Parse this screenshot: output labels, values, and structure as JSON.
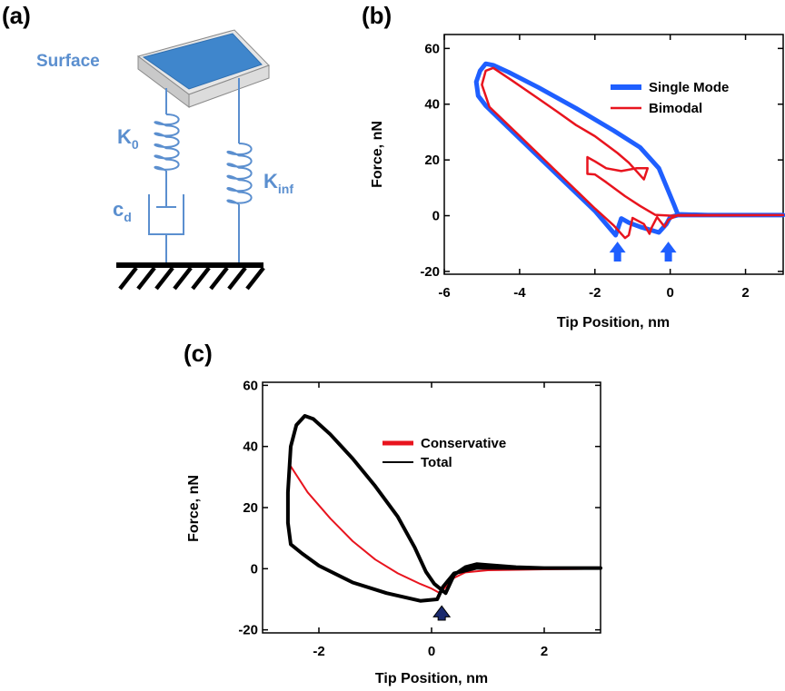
{
  "panels": {
    "a": "(a)",
    "b": "(b)",
    "c": "(c)"
  },
  "schematic": {
    "surface_label": "Surface",
    "k0_main": "K",
    "k0_sub": "0",
    "cd_main": "c",
    "cd_sub": "d",
    "kinf_main": "K",
    "kinf_sub": "inf",
    "colors": {
      "label": "#5b8fcf",
      "surface_top": "#3f86cc",
      "spring": "#5b8fcf"
    }
  },
  "chart_data": [
    {
      "id": "b",
      "type": "line",
      "xlabel": "Tip Position, nm",
      "ylabel": "Force, nN",
      "xlim": [
        -6,
        3
      ],
      "ylim": [
        -21,
        65
      ],
      "xticks": [
        -6,
        -4,
        -2,
        0,
        2
      ],
      "yticks": [
        -20,
        0,
        20,
        40,
        60
      ],
      "legend_position": "top-right",
      "series": [
        {
          "name": "Single Mode",
          "color": "#1f5fff",
          "points": [
            [
              3.0,
              0.2
            ],
            [
              1.0,
              0.2
            ],
            [
              0.2,
              0.2
            ],
            [
              0.0,
              -0.5
            ],
            [
              -0.1,
              -3
            ],
            [
              -0.3,
              -6
            ],
            [
              -0.8,
              -4
            ],
            [
              -1.1,
              -2.5
            ],
            [
              -1.3,
              -1
            ],
            [
              -1.45,
              -7
            ],
            [
              -2.0,
              1.7
            ],
            [
              -2.5,
              8.2
            ],
            [
              -3.0,
              14.7
            ],
            [
              -3.5,
              21.2
            ],
            [
              -4.0,
              27.7
            ],
            [
              -4.5,
              34.2
            ],
            [
              -4.9,
              39.5
            ],
            [
              -5.1,
              43
            ],
            [
              -5.15,
              48
            ],
            [
              -5.05,
              52
            ],
            [
              -4.9,
              54.5
            ],
            [
              -4.7,
              54
            ],
            [
              -4.3,
              51.5
            ],
            [
              -3.5,
              46
            ],
            [
              -2.5,
              38.5
            ],
            [
              -1.5,
              30.5
            ],
            [
              -0.8,
              24.5
            ],
            [
              -0.3,
              17
            ],
            [
              0.1,
              4
            ],
            [
              0.2,
              0.5
            ],
            [
              1.0,
              0.2
            ],
            [
              3.0,
              0.2
            ]
          ]
        },
        {
          "name": "Bimodal",
          "color": "#e8141e",
          "points": [
            [
              3.0,
              0.2
            ],
            [
              0.2,
              0.2
            ],
            [
              -0.05,
              -1.5
            ],
            [
              -0.15,
              -4
            ],
            [
              -0.35,
              -0.5
            ],
            [
              -0.5,
              -4.5
            ],
            [
              -0.55,
              -6.5
            ],
            [
              -0.7,
              -3
            ],
            [
              -1.0,
              -0.8
            ],
            [
              -1.1,
              -7
            ],
            [
              -1.2,
              -8
            ],
            [
              -1.5,
              -3.5
            ],
            [
              -2.0,
              2.6
            ],
            [
              -2.5,
              9.1
            ],
            [
              -3.0,
              15.6
            ],
            [
              -3.5,
              22.1
            ],
            [
              -4.0,
              28.6
            ],
            [
              -4.5,
              35.1
            ],
            [
              -4.8,
              39
            ],
            [
              -5.0,
              47
            ],
            [
              -4.9,
              52
            ],
            [
              -4.7,
              53
            ],
            [
              -4.2,
              48.5
            ],
            [
              -3.5,
              42
            ],
            [
              -3.0,
              37.3
            ],
            [
              -2.5,
              32.5
            ],
            [
              -2.0,
              28.5
            ],
            [
              -1.7,
              25.5
            ],
            [
              -1.4,
              22.5
            ],
            [
              -1.1,
              19
            ],
            [
              -0.7,
              13
            ],
            [
              -0.6,
              17
            ],
            [
              -0.9,
              17
            ],
            [
              -1.3,
              16
            ],
            [
              -1.7,
              17
            ],
            [
              -2.0,
              19.5
            ],
            [
              -2.2,
              21
            ],
            [
              -2.2,
              15
            ],
            [
              -2.0,
              14.8
            ],
            [
              -1.7,
              12
            ],
            [
              -1.2,
              7
            ],
            [
              -0.8,
              3.5
            ],
            [
              -0.4,
              0.3
            ],
            [
              0.0,
              0
            ],
            [
              3.0,
              0.2
            ]
          ]
        }
      ]
    },
    {
      "id": "c",
      "type": "line",
      "xlabel": "Tip Position, nm",
      "ylabel": "Force, nN",
      "xlim": [
        -3,
        3
      ],
      "ylim": [
        -21,
        61
      ],
      "xticks": [
        -2,
        0,
        2
      ],
      "yticks": [
        -20,
        0,
        20,
        40,
        60
      ],
      "legend_position": "top-right",
      "series": [
        {
          "name": "Conservative",
          "color": "#e8141e",
          "points": [
            [
              -2.5,
              33.5
            ],
            [
              -2.2,
              25
            ],
            [
              -1.8,
              16.5
            ],
            [
              -1.4,
              9
            ],
            [
              -1.0,
              3
            ],
            [
              -0.6,
              -1.5
            ],
            [
              -0.2,
              -5
            ],
            [
              0.0,
              -6.5
            ],
            [
              0.15,
              -8
            ],
            [
              0.25,
              -6
            ],
            [
              0.4,
              -3
            ],
            [
              0.6,
              -1.2
            ],
            [
              1.0,
              -0.5
            ],
            [
              2.0,
              -0.2
            ],
            [
              3.0,
              0
            ]
          ]
        },
        {
          "name": "Total",
          "color": "#000000",
          "points": [
            [
              3.0,
              0.2
            ],
            [
              1.5,
              0.2
            ],
            [
              0.8,
              0.3
            ],
            [
              0.4,
              -1.5
            ],
            [
              0.2,
              -6
            ],
            [
              0.1,
              -10
            ],
            [
              -0.2,
              -10.5
            ],
            [
              -0.8,
              -8
            ],
            [
              -1.4,
              -4.5
            ],
            [
              -2.0,
              1
            ],
            [
              -2.3,
              5
            ],
            [
              -2.5,
              8
            ],
            [
              -2.55,
              15
            ],
            [
              -2.55,
              25
            ],
            [
              -2.5,
              40
            ],
            [
              -2.4,
              47
            ],
            [
              -2.25,
              50
            ],
            [
              -2.1,
              49
            ],
            [
              -1.8,
              44
            ],
            [
              -1.4,
              36
            ],
            [
              -1.0,
              27
            ],
            [
              -0.6,
              17
            ],
            [
              -0.3,
              7
            ],
            [
              -0.1,
              -1
            ],
            [
              0.05,
              -5
            ],
            [
              0.25,
              -8
            ],
            [
              0.4,
              -2
            ],
            [
              0.6,
              0.5
            ],
            [
              0.8,
              1.5
            ],
            [
              1.0,
              1.2
            ],
            [
              1.5,
              0.5
            ],
            [
              2.0,
              0.2
            ],
            [
              3.0,
              0.2
            ]
          ]
        }
      ]
    }
  ]
}
